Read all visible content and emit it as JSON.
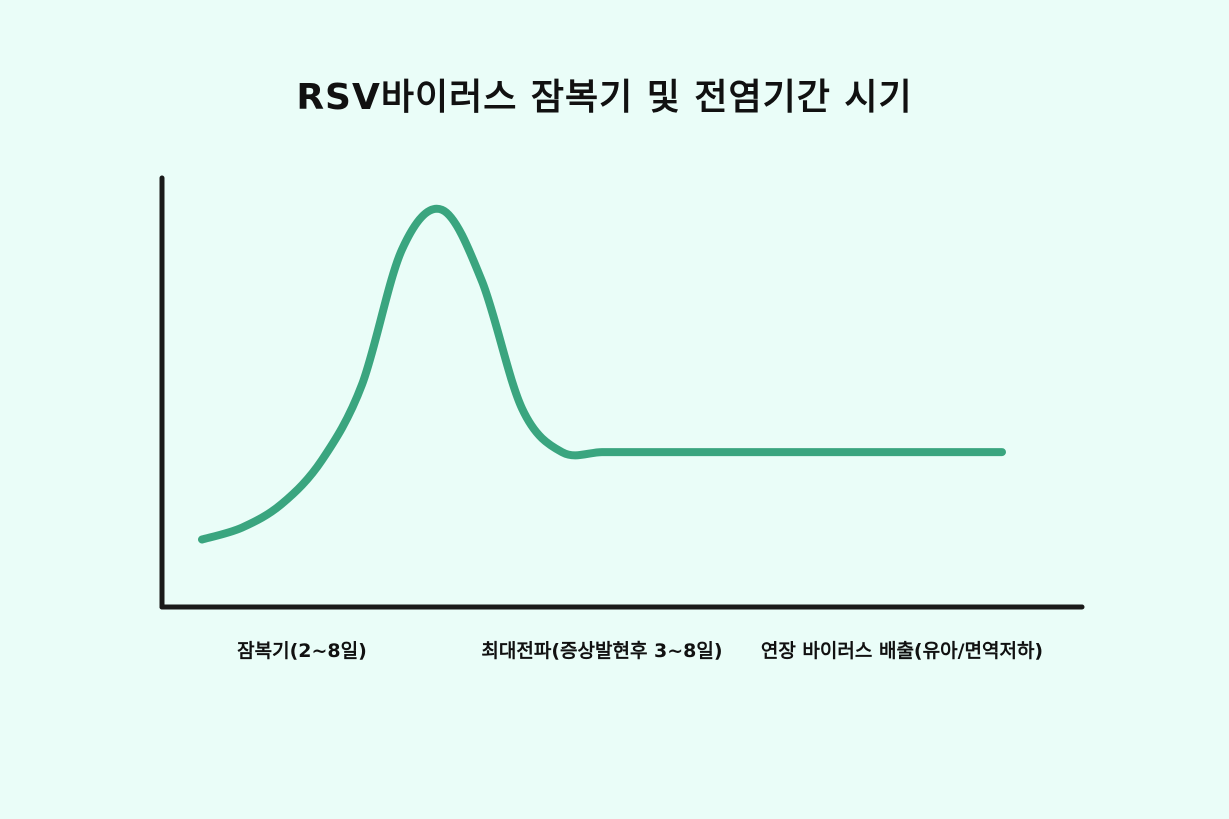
{
  "chart_data": {
    "type": "line",
    "title": "RSV바이러스 잠복기 및 전염기간 시기",
    "xlabel": "",
    "ylabel": "",
    "categories": [
      "잠복기(2~8일)",
      "최대전파(증상발현후 3~8일)",
      "연장 바이러스 배출(유아/면역저하)"
    ],
    "series": [
      {
        "x": [
          0.0,
          0.2,
          0.4,
          0.6,
          0.8,
          1.0,
          1.2,
          1.4,
          1.6,
          1.8,
          2.0,
          2.2,
          2.4,
          2.6,
          2.8,
          3.0,
          3.2,
          3.4,
          3.6,
          3.8,
          4.0
        ],
        "values": [
          0.17,
          0.2,
          0.26,
          0.37,
          0.56,
          0.9,
          1.0,
          0.82,
          0.5,
          0.39,
          0.39,
          0.39,
          0.39,
          0.39,
          0.39,
          0.39,
          0.39,
          0.39,
          0.39,
          0.39,
          0.39
        ]
      }
    ],
    "xlim": [
      -0.2,
      4.4
    ],
    "ylim": [
      0,
      1.08
    ],
    "grid": false,
    "legend": "none",
    "line_color": "#3aa57f",
    "axis_color": "#1a1a1a"
  }
}
